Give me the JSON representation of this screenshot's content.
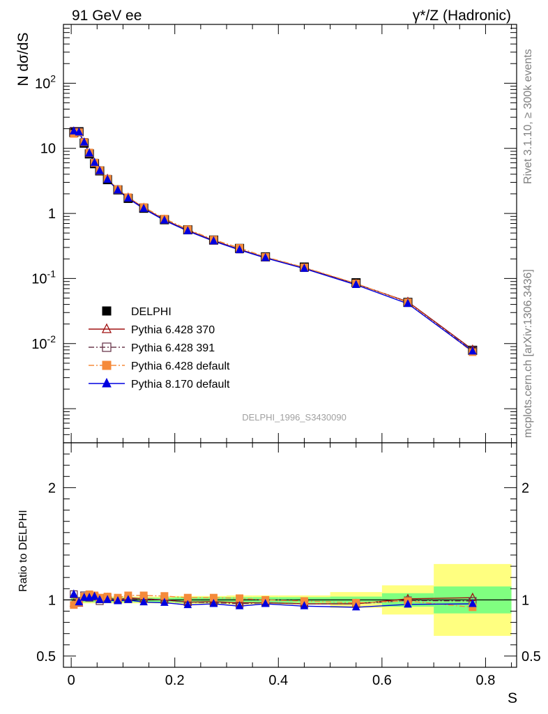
{
  "header": {
    "left": "91 GeV ee",
    "right_prefix": "γ*/Z",
    "right_suffix": " (Hadronic)"
  },
  "side": {
    "rivet": "Rivet 3.1.10, ≥ 300k events",
    "source": "mcplots.cern.ch [arXiv:1306.3436]"
  },
  "watermark": "DELPHI_1996_S3430090",
  "chart_data": [
    {
      "type": "line",
      "ylabel": "N dσ/dS",
      "xlabel": "",
      "yscale": "log",
      "ylim": [
        0.0003,
        800
      ],
      "xlim": [
        -0.015,
        0.86
      ],
      "ytick_labels": [
        "10^-2",
        "10^-1",
        "1",
        "10",
        "10^2"
      ],
      "ytick_values": [
        0.01,
        0.1,
        1,
        10,
        100
      ],
      "legend_position": "lower-left",
      "x": [
        0.005,
        0.015,
        0.025,
        0.035,
        0.045,
        0.055,
        0.07,
        0.09,
        0.11,
        0.14,
        0.18,
        0.225,
        0.275,
        0.325,
        0.375,
        0.45,
        0.55,
        0.65,
        0.775
      ],
      "series": [
        {
          "name": "DELPHI",
          "color": "#000000",
          "marker": "filled-square",
          "line": "none",
          "values": [
            17.5,
            18.0,
            12.0,
            8.2,
            5.8,
            4.5,
            3.3,
            2.3,
            1.7,
            1.2,
            0.8,
            0.56,
            0.39,
            0.29,
            0.215,
            0.15,
            0.086,
            0.043,
            0.0079
          ]
        },
        {
          "name": "Pythia 6.428 370",
          "color": "#a01010",
          "marker": "open-triangle",
          "line": "solid",
          "values": [
            17.5,
            17.5,
            12.3,
            8.4,
            6.0,
            4.5,
            3.4,
            2.3,
            1.75,
            1.22,
            0.8,
            0.55,
            0.385,
            0.28,
            0.21,
            0.145,
            0.083,
            0.044,
            0.0081
          ]
        },
        {
          "name": "Pythia 6.428 391",
          "color": "#6b3a4e",
          "marker": "open-square",
          "line": "dashdot",
          "values": [
            18.5,
            17.8,
            12.5,
            8.4,
            6.0,
            4.5,
            3.4,
            2.3,
            1.74,
            1.22,
            0.8,
            0.55,
            0.38,
            0.28,
            0.21,
            0.145,
            0.083,
            0.043,
            0.0079
          ]
        },
        {
          "name": "Pythia 6.428 default",
          "color": "#f58a3a",
          "marker": "filled-square",
          "line": "dashdot",
          "values": [
            16.7,
            17.6,
            12.4,
            8.6,
            6.0,
            4.6,
            3.4,
            2.35,
            1.77,
            1.25,
            0.83,
            0.57,
            0.395,
            0.295,
            0.215,
            0.148,
            0.084,
            0.043,
            0.0074
          ]
        },
        {
          "name": "Pythia 8.170 default",
          "color": "#0000e0",
          "marker": "filled-triangle",
          "line": "solid",
          "values": [
            18.3,
            17.6,
            12.3,
            8.4,
            6.0,
            4.5,
            3.3,
            2.27,
            1.7,
            1.18,
            0.78,
            0.535,
            0.375,
            0.275,
            0.207,
            0.142,
            0.08,
            0.041,
            0.0076
          ]
        }
      ]
    },
    {
      "type": "line",
      "ylabel": "Ratio to DELPHI",
      "xlabel": "S",
      "ylim": [
        0.4,
        2.4
      ],
      "xlim": [
        -0.015,
        0.86
      ],
      "ytick_labels": [
        "0.5",
        "1",
        "2"
      ],
      "ytick_values": [
        0.5,
        1,
        2
      ],
      "xtick_labels": [
        "0",
        "0.2",
        "0.4",
        "0.6",
        "0.8"
      ],
      "xtick_values": [
        0,
        0.2,
        0.4,
        0.6,
        0.8
      ],
      "bin_edges": [
        0,
        0.01,
        0.02,
        0.03,
        0.04,
        0.05,
        0.06,
        0.08,
        0.1,
        0.12,
        0.16,
        0.2,
        0.25,
        0.3,
        0.35,
        0.4,
        0.5,
        0.6,
        0.7,
        0.85
      ],
      "band_stat": [
        0.02,
        0.02,
        0.02,
        0.02,
        0.02,
        0.02,
        0.02,
        0.02,
        0.02,
        0.02,
        0.02,
        0.025,
        0.025,
        0.025,
        0.025,
        0.025,
        0.03,
        0.06,
        0.12
      ],
      "band_total": [
        0.03,
        0.03,
        0.03,
        0.03,
        0.03,
        0.03,
        0.03,
        0.03,
        0.03,
        0.03,
        0.03,
        0.035,
        0.035,
        0.04,
        0.04,
        0.04,
        0.07,
        0.13,
        0.32
      ],
      "series": [
        {
          "name": "Pythia 6.428 370",
          "values": [
            0.97,
            0.97,
            1.02,
            1.02,
            1.03,
            1.0,
            1.02,
            1.0,
            1.02,
            1.01,
            1.0,
            0.98,
            0.985,
            0.975,
            0.975,
            0.965,
            0.965,
            1.01,
            1.02
          ]
        },
        {
          "name": "Pythia 6.428 391",
          "values": [
            1.05,
            0.99,
            1.04,
            1.02,
            1.03,
            0.99,
            1.02,
            1.0,
            1.01,
            1.01,
            1.0,
            0.98,
            0.975,
            0.965,
            0.975,
            0.965,
            0.965,
            0.995,
            0.99
          ]
        },
        {
          "name": "Pythia 6.428 default",
          "values": [
            0.955,
            0.98,
            1.03,
            1.05,
            1.04,
            1.02,
            1.03,
            1.02,
            1.04,
            1.04,
            1.035,
            1.02,
            1.02,
            1.015,
            1.0,
            0.99,
            0.975,
            0.99,
            0.935
          ]
        },
        {
          "name": "Pythia 8.170 default",
          "values": [
            1.05,
            0.98,
            1.02,
            1.02,
            1.03,
            1.0,
            1.0,
            0.99,
            1.0,
            0.98,
            0.975,
            0.955,
            0.965,
            0.945,
            0.965,
            0.945,
            0.935,
            0.96,
            0.965
          ]
        }
      ]
    }
  ]
}
